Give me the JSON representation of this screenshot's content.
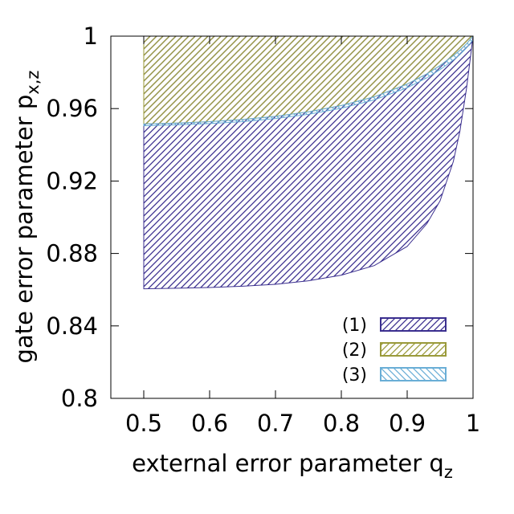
{
  "chart_data": {
    "type": "area",
    "title": "",
    "xlabel": "external error parameter q",
    "xlabel_sub": "z",
    "ylabel": "gate error parameter p",
    "ylabel_sub": "x,z",
    "xlim": [
      0.45,
      1.0
    ],
    "ylim": [
      0.8,
      1.0
    ],
    "xticks": [
      0.5,
      0.6,
      0.7,
      0.8,
      0.9,
      1.0
    ],
    "xtick_labels": [
      "0.5",
      "0.6",
      "0.7",
      "0.8",
      "0.9",
      "1"
    ],
    "yticks": [
      0.8,
      0.84,
      0.88,
      0.92,
      0.96,
      1.0
    ],
    "ytick_labels": [
      "0.8",
      "0.84",
      "0.88",
      "0.92",
      "0.96",
      "1"
    ],
    "grid": false,
    "legend_position": "bottom-right",
    "series": [
      {
        "name": "(1)",
        "color": "#3b2f8f",
        "pattern": "diagonal-hatch",
        "x": [
          0.5,
          0.55,
          0.6,
          0.65,
          0.7,
          0.75,
          0.8,
          0.85,
          0.9,
          0.93,
          0.95,
          0.97,
          0.98,
          0.99,
          0.995,
          1.0
        ],
        "lower": [
          0.8605,
          0.8608,
          0.8612,
          0.8619,
          0.863,
          0.8649,
          0.868,
          0.8733,
          0.8839,
          0.8965,
          0.9091,
          0.9307,
          0.9474,
          0.9709,
          0.9853,
          1.0
        ],
        "upper": [
          1.0,
          1.0,
          1.0,
          1.0,
          1.0,
          1.0,
          1.0,
          1.0,
          1.0,
          1.0,
          1.0,
          1.0,
          1.0,
          1.0,
          1.0,
          1.0
        ]
      },
      {
        "name": "(2)",
        "color": "#9a9a3a",
        "pattern": "diagonal-hatch",
        "x": [
          0.5,
          0.55,
          0.6,
          0.65,
          0.7,
          0.75,
          0.8,
          0.85,
          0.9,
          0.93,
          0.95,
          0.97,
          0.98,
          0.99,
          1.0
        ],
        "lower": [
          0.9515,
          0.952,
          0.9528,
          0.954,
          0.9557,
          0.9582,
          0.9617,
          0.9665,
          0.9735,
          0.9792,
          0.9838,
          0.9892,
          0.9922,
          0.9957,
          1.0
        ],
        "upper": [
          1.0,
          1.0,
          1.0,
          1.0,
          1.0,
          1.0,
          1.0,
          1.0,
          1.0,
          1.0,
          1.0,
          1.0,
          1.0,
          1.0,
          1.0
        ]
      },
      {
        "name": "(3)",
        "color": "#6aaed6",
        "pattern": "backslash-hatch",
        "x": [
          0.5,
          0.55,
          0.6,
          0.65,
          0.7,
          0.75,
          0.8,
          0.85,
          0.9,
          0.93,
          0.95,
          0.97,
          0.98,
          0.99,
          1.0
        ],
        "lower": [
          0.9505,
          0.951,
          0.9517,
          0.9528,
          0.9545,
          0.9568,
          0.9602,
          0.9648,
          0.9715,
          0.977,
          0.9815,
          0.9868,
          0.9898,
          0.9935,
          0.998
        ],
        "upper": [
          0.9515,
          0.952,
          0.9528,
          0.954,
          0.9557,
          0.9582,
          0.9617,
          0.9665,
          0.9735,
          0.9792,
          0.9838,
          0.9892,
          0.9922,
          0.9957,
          1.0
        ]
      }
    ]
  }
}
